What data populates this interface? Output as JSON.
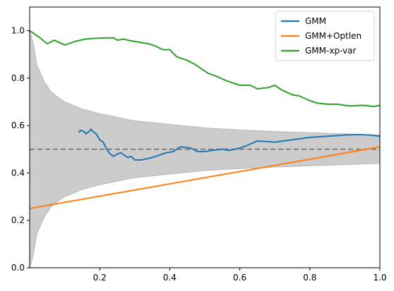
{
  "chart_data": {
    "type": "line",
    "title": "",
    "xlabel": "",
    "ylabel": "",
    "xlim": [
      0.0,
      1.0
    ],
    "ylim": [
      0.0,
      1.1
    ],
    "x_ticks": [
      0.2,
      0.4,
      0.6,
      0.8,
      1.0
    ],
    "x_tick_labels": [
      "0.2",
      "0.4",
      "0.6",
      "0.8",
      "1.0"
    ],
    "y_ticks": [
      0.0,
      0.2,
      0.4,
      0.6,
      0.8,
      1.0
    ],
    "y_tick_labels": [
      "0.0",
      "0.2",
      "0.4",
      "0.6",
      "0.8",
      "1.0"
    ],
    "grid": false,
    "legend_position": "top-right",
    "reference_line": {
      "y": 0.5,
      "style": "dashed",
      "color": "#808080"
    },
    "confidence_band": {
      "color": "#cccccc",
      "x": [
        0.0,
        0.01,
        0.02,
        0.04,
        0.06,
        0.08,
        0.1,
        0.15,
        0.2,
        0.25,
        0.3,
        0.4,
        0.5,
        0.6,
        0.7,
        0.8,
        0.9,
        1.0
      ],
      "upper": [
        1.0,
        0.95,
        0.86,
        0.79,
        0.745,
        0.72,
        0.7,
        0.67,
        0.65,
        0.635,
        0.62,
        0.605,
        0.59,
        0.582,
        0.575,
        0.57,
        0.565,
        0.56
      ],
      "lower": [
        0.0,
        0.05,
        0.14,
        0.21,
        0.255,
        0.28,
        0.3,
        0.33,
        0.35,
        0.365,
        0.38,
        0.395,
        0.41,
        0.418,
        0.425,
        0.43,
        0.435,
        0.44
      ]
    },
    "series": [
      {
        "name": "GMM",
        "color": "#1f77b4",
        "x": [
          0.14,
          0.145,
          0.155,
          0.16,
          0.165,
          0.17,
          0.175,
          0.18,
          0.19,
          0.2,
          0.21,
          0.22,
          0.23,
          0.24,
          0.25,
          0.26,
          0.27,
          0.28,
          0.29,
          0.3,
          0.32,
          0.35,
          0.37,
          0.39,
          0.41,
          0.43,
          0.46,
          0.48,
          0.5,
          0.52,
          0.55,
          0.57,
          0.6,
          0.62,
          0.65,
          0.7,
          0.75,
          0.8,
          0.85,
          0.9,
          0.94,
          0.97,
          1.0
        ],
        "y": [
          0.57,
          0.58,
          0.575,
          0.565,
          0.57,
          0.575,
          0.585,
          0.575,
          0.565,
          0.54,
          0.53,
          0.5,
          0.48,
          0.47,
          0.48,
          0.485,
          0.475,
          0.465,
          0.47,
          0.455,
          0.455,
          0.465,
          0.475,
          0.485,
          0.49,
          0.51,
          0.505,
          0.49,
          0.49,
          0.495,
          0.5,
          0.495,
          0.505,
          0.515,
          0.535,
          0.53,
          0.54,
          0.55,
          0.555,
          0.56,
          0.562,
          0.56,
          0.555
        ]
      },
      {
        "name": "GMM+Optlen",
        "color": "#ff7f0e",
        "x": [
          0.0,
          1.0
        ],
        "y": [
          0.25,
          0.51
        ]
      },
      {
        "name": "GMM-xp-var",
        "color": "#2ca02c",
        "x": [
          0.0,
          0.03,
          0.05,
          0.07,
          0.1,
          0.13,
          0.16,
          0.19,
          0.22,
          0.24,
          0.25,
          0.27,
          0.28,
          0.3,
          0.32,
          0.34,
          0.35,
          0.36,
          0.38,
          0.4,
          0.42,
          0.45,
          0.47,
          0.49,
          0.51,
          0.53,
          0.56,
          0.6,
          0.63,
          0.65,
          0.68,
          0.7,
          0.72,
          0.75,
          0.77,
          0.8,
          0.82,
          0.85,
          0.88,
          0.9,
          0.92,
          0.94,
          0.96,
          0.98,
          1.0
        ],
        "y": [
          1.0,
          0.97,
          0.945,
          0.96,
          0.94,
          0.955,
          0.965,
          0.968,
          0.97,
          0.97,
          0.96,
          0.965,
          0.96,
          0.955,
          0.95,
          0.945,
          0.94,
          0.935,
          0.92,
          0.92,
          0.89,
          0.875,
          0.86,
          0.84,
          0.82,
          0.81,
          0.79,
          0.77,
          0.77,
          0.755,
          0.76,
          0.77,
          0.75,
          0.73,
          0.725,
          0.705,
          0.695,
          0.69,
          0.69,
          0.685,
          0.683,
          0.685,
          0.685,
          0.68,
          0.685
        ]
      }
    ]
  }
}
